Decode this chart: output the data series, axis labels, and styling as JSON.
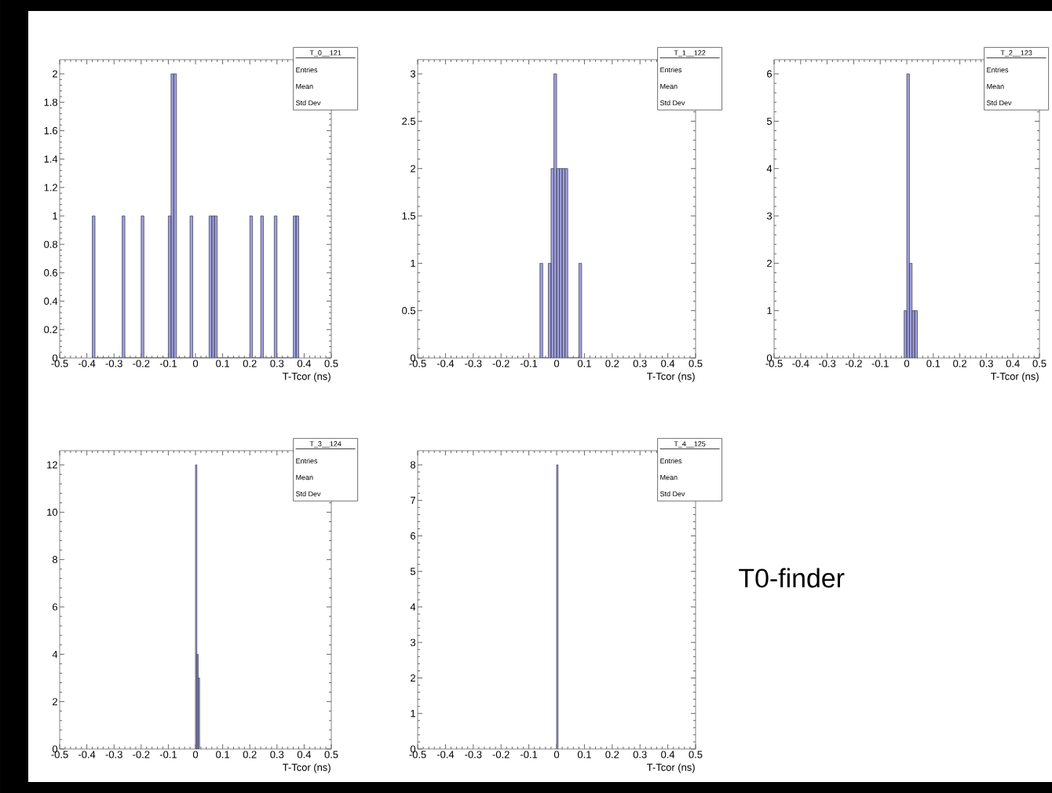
{
  "chart_data": [
    {
      "type": "histogram",
      "title": "T_0__121",
      "xlabel": "T-Tcor (ns)",
      "color": "#a0a0dc",
      "bins": [
        -0.38,
        -0.37,
        -0.27,
        -0.26,
        -0.2,
        -0.19,
        -0.1,
        -0.09,
        -0.08,
        -0.07,
        -0.02,
        -0.01,
        0.05,
        0.06,
        0.07,
        0.08,
        0.2,
        0.21,
        0.24,
        0.25,
        0.29,
        0.3,
        0.36,
        0.37,
        0.38
      ],
      "values": [
        1,
        0,
        1,
        0,
        1,
        0,
        1,
        2,
        2,
        0,
        1,
        0,
        1,
        1,
        1,
        0,
        1,
        0,
        1,
        0,
        1,
        0,
        1,
        1
      ],
      "xlim": [
        -0.5,
        0.5
      ],
      "xticks": [
        -0.5,
        -0.4,
        -0.3,
        -0.2,
        -0.1,
        0,
        0.1,
        0.2,
        0.3,
        0.4,
        0.5
      ],
      "ylim": [
        0,
        2.1
      ],
      "yticks": [
        0,
        0.2,
        0.4,
        0.6,
        0.8,
        1,
        1.2,
        1.4,
        1.6,
        1.8,
        2
      ],
      "annotations": [
        "Entries",
        "Mean",
        "Std Dev"
      ]
    },
    {
      "type": "histogram",
      "title": "T_1__122",
      "xlabel": "T-Tcor (ns)",
      "color": "#a0a0dc",
      "bins": [
        -0.06,
        -0.05,
        -0.03,
        -0.02,
        -0.01,
        0,
        0.01,
        0.02,
        0.03,
        0.04,
        0.08,
        0.09
      ],
      "values": [
        1,
        0,
        1,
        2,
        3,
        2,
        2,
        2,
        2,
        0,
        1
      ],
      "xlim": [
        -0.5,
        0.5
      ],
      "xticks": [
        -0.5,
        -0.4,
        -0.3,
        -0.2,
        -0.1,
        0,
        0.1,
        0.2,
        0.3,
        0.4,
        0.5
      ],
      "ylim": [
        0,
        3.15
      ],
      "yticks": [
        0,
        0.5,
        1,
        1.5,
        2,
        2.5,
        3
      ],
      "annotations": [
        "Entries",
        "Mean",
        "Std Dev"
      ]
    },
    {
      "type": "histogram",
      "title": "T_2__123",
      "xlabel": "T-Tcor (ns)",
      "color": "#a0a0dc",
      "bins": [
        -0.01,
        0,
        0.01,
        0.02,
        0.03,
        0.04
      ],
      "values": [
        1,
        6,
        2,
        1,
        1
      ],
      "xlim": [
        -0.5,
        0.5
      ],
      "xticks": [
        -0.5,
        -0.4,
        -0.3,
        -0.2,
        -0.1,
        0,
        0.1,
        0.2,
        0.3,
        0.4,
        0.5
      ],
      "ylim": [
        0,
        6.3
      ],
      "yticks": [
        0,
        1,
        2,
        3,
        4,
        5,
        6
      ],
      "annotations": [
        "Entries",
        "Mean",
        "Std Dev"
      ]
    },
    {
      "type": "histogram",
      "title": "T_3__124",
      "xlabel": "T-Tcor (ns)",
      "color": "#a0a0dc",
      "bins": [
        0,
        0.005,
        0.01,
        0.015
      ],
      "values": [
        12,
        4,
        3
      ],
      "xlim": [
        -0.5,
        0.5
      ],
      "xticks": [
        -0.5,
        -0.4,
        -0.3,
        -0.2,
        -0.1,
        0,
        0.1,
        0.2,
        0.3,
        0.4,
        0.5
      ],
      "ylim": [
        0,
        12.6
      ],
      "yticks": [
        0,
        2,
        4,
        6,
        8,
        10,
        12
      ],
      "annotations": [
        "Entries",
        "Mean",
        "Std Dev"
      ]
    },
    {
      "type": "histogram",
      "title": "T_4__125",
      "xlabel": "T-Tcor (ns)",
      "color": "#a0a0dc",
      "bins": [
        0,
        0.005
      ],
      "values": [
        8
      ],
      "xlim": [
        -0.5,
        0.5
      ],
      "xticks": [
        -0.5,
        -0.4,
        -0.3,
        -0.2,
        -0.1,
        0,
        0.1,
        0.2,
        0.3,
        0.4,
        0.5
      ],
      "ylim": [
        0,
        8.4
      ],
      "yticks": [
        0,
        1,
        2,
        3,
        4,
        5,
        6,
        7,
        8
      ],
      "annotations": [
        "Entries",
        "Mean",
        "Std Dev"
      ]
    },
    {
      "type": "other",
      "annotations": [
        "T0-finder"
      ]
    }
  ]
}
